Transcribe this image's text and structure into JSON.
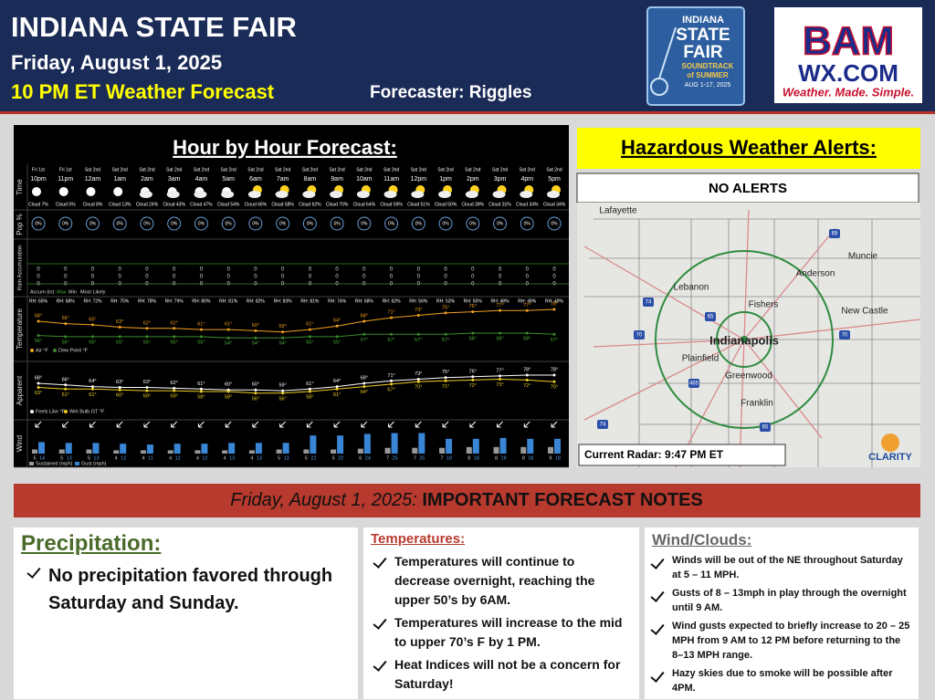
{
  "header": {
    "title": "INDIANA STATE FAIR",
    "date": "Friday, August 1, 2025",
    "subtitle": "10 PM ET Weather Forecast",
    "forecaster": "Forecaster: Riggles"
  },
  "logos": {
    "fair": [
      "INDIANA",
      "STATE",
      "FAIR",
      "SOUNDTRACK",
      "of SUMMER",
      "AUG 1-17, 2025"
    ],
    "bam": [
      "BAM",
      "WX.COM",
      "Weather. Made. Simple."
    ],
    "clarity": "CLARITY"
  },
  "hourly": {
    "title": "Hour by Hour Forecast:",
    "row_labels": [
      "Time",
      "Pop %",
      "Rain Accumulation",
      "Temperature",
      "Apparent",
      "Wind"
    ],
    "days": [
      "Fri 1st",
      "Fri 1st",
      "Sat 2nd",
      "Sat 2nd",
      "Sat 2nd",
      "Sat 2nd",
      "Sat 2nd",
      "Sat 2nd",
      "Sat 2nd",
      "Sat 2nd",
      "Sat 2nd",
      "Sat 2nd",
      "Sat 2nd",
      "Sat 2nd",
      "Sat 2nd",
      "Sat 2nd",
      "Sat 2nd",
      "Sat 2nd",
      "Sat 2nd",
      "Sat 2nd"
    ],
    "times": [
      "10pm",
      "11pm",
      "12am",
      "1am",
      "2am",
      "3am",
      "4am",
      "5am",
      "6am",
      "7am",
      "8am",
      "9am",
      "10am",
      "11am",
      "12pm",
      "1pm",
      "2pm",
      "3pm",
      "4pm",
      "5pm"
    ],
    "clouds": [
      "Cloud 7%",
      "Cloud 5%",
      "Cloud 8%",
      "Cloud 13%",
      "Cloud 24%",
      "Cloud 43%",
      "Cloud 47%",
      "Cloud 54%",
      "Cloud 66%",
      "Cloud 58%",
      "Cloud 62%",
      "Cloud 70%",
      "Cloud 64%",
      "Cloud 59%",
      "Cloud 51%",
      "Cloud 50%",
      "Cloud 39%",
      "Cloud 31%",
      "Cloud 34%",
      "Cloud 34%"
    ],
    "pop": [
      "0%",
      "0%",
      "0%",
      "0%",
      "0%",
      "0%",
      "0%",
      "0%",
      "0%",
      "0%",
      "0%",
      "0%",
      "0%",
      "0%",
      "0%",
      "0%",
      "0%",
      "0%",
      "0%",
      "0%"
    ],
    "rain_max": [
      0,
      0,
      0,
      0,
      0,
      0,
      0,
      0,
      0,
      0,
      0,
      0,
      0,
      0,
      0,
      0,
      0,
      0,
      0,
      0
    ],
    "rain_min": [
      0,
      0,
      0,
      0,
      0,
      0,
      0,
      0,
      0,
      0,
      0,
      0,
      0,
      0,
      0,
      0,
      0,
      0,
      0,
      0
    ],
    "rain_likely": [
      0,
      0,
      0,
      0,
      0,
      0,
      0,
      0,
      0,
      0,
      0,
      0,
      0,
      0,
      0,
      0,
      0,
      0,
      0,
      0
    ],
    "rain_legend": [
      "Accum (in):",
      "Max",
      "Min",
      "Most Likely"
    ],
    "rh": [
      "RH: 65%",
      "RH: 68%",
      "RH: 72%",
      "RH: 75%",
      "RH: 78%",
      "RH: 79%",
      "RH: 80%",
      "RH: 81%",
      "RH: 82%",
      "RH: 83%",
      "RH: 81%",
      "RH: 74%",
      "RH: 68%",
      "RH: 62%",
      "RH: 56%",
      "RH: 53%",
      "RH: 50%",
      "RH: 48%",
      "RH: 48%",
      "RH: 49%"
    ],
    "temps": [
      68,
      66,
      65,
      63,
      62,
      62,
      61,
      61,
      60,
      59,
      61,
      64,
      68,
      71,
      73,
      75,
      76,
      77,
      77,
      78
    ],
    "temp_labels": [
      "68°",
      "66°",
      "65°",
      "63°",
      "62°",
      "62°",
      "61°",
      "61°",
      "60°",
      "59°",
      "61°",
      "64°",
      "68°",
      "71°",
      "73°",
      "75°",
      "76°",
      "77°",
      "77°",
      "78°"
    ],
    "dew": [
      56,
      55,
      55,
      55,
      55,
      55,
      55,
      54,
      54,
      54,
      55,
      55,
      57,
      57,
      57,
      57,
      58,
      58,
      58,
      57
    ],
    "dew_labels": [
      "56°",
      "55°",
      "55°",
      "55°",
      "55°",
      "55°",
      "55°",
      "54°",
      "54°",
      "54°",
      "55°",
      "55°",
      "57°",
      "57°",
      "57°",
      "57°",
      "58°",
      "58°",
      "58°",
      "57°"
    ],
    "temp_legend": [
      "Air °F",
      "Dew Point °F"
    ],
    "feels": [
      68,
      66,
      64,
      63,
      63,
      62,
      61,
      60,
      60,
      59,
      61,
      64,
      68,
      71,
      73,
      75,
      76,
      77,
      78,
      78
    ],
    "feels_labels": [
      "68°",
      "66°",
      "64°",
      "63°",
      "63°",
      "62°",
      "61°",
      "60°",
      "60°",
      "59°",
      "61°",
      "64°",
      "68°",
      "71°",
      "73°",
      "75°",
      "76°",
      "77°",
      "78°",
      "78°"
    ],
    "wetbulb": [
      63,
      61,
      61,
      60,
      59,
      59,
      58,
      58,
      56,
      56,
      58,
      61,
      64,
      67,
      70,
      71,
      72,
      73,
      72,
      70
    ],
    "wetbulb_labels": [
      "63°",
      "61°",
      "61°",
      "60°",
      "59°",
      "59°",
      "58°",
      "58°",
      "56°",
      "56°",
      "58°",
      "61°",
      "64°",
      "67°",
      "70°",
      "71°",
      "72°",
      "73°",
      "72°",
      "70°"
    ],
    "apparent_legend": [
      "Feels Like °F",
      "Wet Bulb GT °F"
    ],
    "wind_sustained": [
      5,
      5,
      5,
      4,
      4,
      4,
      4,
      4,
      4,
      5,
      5,
      5,
      6,
      7,
      7,
      7,
      8,
      8,
      8,
      8
    ],
    "wind_gust": [
      14,
      13,
      13,
      12,
      11,
      12,
      12,
      13,
      13,
      13,
      22,
      22,
      24,
      25,
      25,
      18,
      18,
      19,
      18,
      18
    ],
    "wind_legend": [
      "Sustained (mph)",
      "Gust (mph)"
    ]
  },
  "alerts": {
    "title": "Hazardous Weather Alerts:",
    "status": "NO ALERTS",
    "radar": "Current Radar: 9:47 PM ET",
    "cities": [
      "Lafayette",
      "Muncie",
      "Anderson",
      "Lebanon",
      "Fishers",
      "New Castle",
      "Indianapolis",
      "Plainfield",
      "Greenwood",
      "Franklin"
    ],
    "highways": [
      "69",
      "74",
      "65",
      "465",
      "70",
      "70",
      "65",
      "74"
    ]
  },
  "banner": {
    "date": "Friday, August 1, 2025:",
    "title": "IMPORTANT FORECAST NOTES"
  },
  "notes": [
    {
      "title": "Precipitation:",
      "items": [
        "No precipitation favored through Saturday and Sunday."
      ]
    },
    {
      "title": "Temperatures:",
      "items": [
        "Temperatures will continue to decrease overnight, reaching the upper 50’s by 6AM.",
        "Temperatures will increase to the mid to upper 70’s F by 1 PM.",
        "Heat Indices will not be a concern for Saturday!"
      ]
    },
    {
      "title": "Wind/Clouds:",
      "items": [
        "Winds will be out of the NE throughout Saturday at 5 – 11 MPH.",
        "Gusts of 8 – 13mph in play through the overnight until 9 AM.",
        "Wind gusts expected to briefly increase to 20 – 25 MPH from 9 AM to 12 PM before returning to the 8–13 MPH range.",
        "Hazy skies due to smoke will be possible after 4PM."
      ]
    }
  ]
}
